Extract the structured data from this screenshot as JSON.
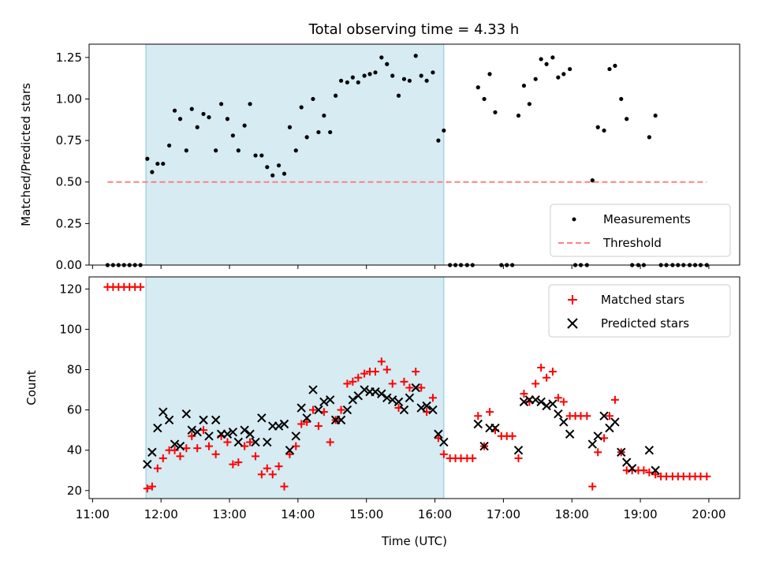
{
  "chart_data": [
    {
      "type": "scatter",
      "title": "Total observing time = 4.33 h",
      "ylabel": "Matched/Predicted stars",
      "xlabel": "",
      "xlim": [
        10.95,
        20.45
      ],
      "ylim": [
        0,
        1.33
      ],
      "yticks": [
        0.0,
        0.25,
        0.5,
        0.75,
        1.0,
        1.25
      ],
      "ytick_labels": [
        "0.00",
        "0.25",
        "0.50",
        "0.75",
        "1.00",
        "1.25"
      ],
      "xticks": [
        11,
        12,
        13,
        14,
        15,
        16,
        17,
        18,
        19,
        20
      ],
      "observing_window": [
        11.78,
        16.13
      ],
      "legend_position": "lower-right",
      "series": [
        {
          "name": "Measurements",
          "marker": "dot",
          "color": "#000000",
          "x": [
            11.22,
            11.3,
            11.38,
            11.46,
            11.54,
            11.62,
            11.7,
            11.8,
            11.87,
            11.95,
            12.03,
            12.12,
            12.2,
            12.28,
            12.37,
            12.45,
            12.53,
            12.62,
            12.7,
            12.8,
            12.88,
            12.97,
            13.05,
            13.13,
            13.22,
            13.3,
            13.38,
            13.47,
            13.55,
            13.63,
            13.72,
            13.8,
            13.88,
            13.97,
            14.05,
            14.13,
            14.22,
            14.3,
            14.38,
            14.47,
            14.55,
            14.63,
            14.72,
            14.8,
            14.88,
            14.97,
            15.05,
            15.13,
            15.22,
            15.3,
            15.38,
            15.47,
            15.55,
            15.63,
            15.72,
            15.8,
            15.88,
            15.97,
            16.05,
            16.13,
            16.22,
            16.3,
            16.38,
            16.47,
            16.55,
            16.63,
            16.72,
            16.8,
            16.88,
            16.97,
            17.05,
            17.13,
            17.22,
            17.3,
            17.38,
            17.47,
            17.55,
            17.63,
            17.72,
            17.8,
            17.88,
            17.97,
            18.05,
            18.13,
            18.22,
            18.3,
            18.38,
            18.47,
            18.55,
            18.63,
            18.72,
            18.8,
            18.88,
            18.97,
            19.05,
            19.13,
            19.22,
            19.3,
            19.38,
            19.47,
            19.55,
            19.63,
            19.72,
            19.8,
            19.88,
            19.97
          ],
          "y": [
            0,
            0,
            0,
            0,
            0,
            0,
            0,
            0.64,
            0.56,
            0.61,
            0.61,
            0.72,
            0.93,
            0.88,
            0.69,
            0.94,
            0.83,
            0.91,
            0.89,
            0.69,
            0.97,
            0.88,
            0.78,
            0.69,
            0.84,
            0.97,
            0.66,
            0.66,
            0.59,
            0.54,
            0.6,
            0.55,
            0.83,
            0.69,
            0.95,
            0.77,
            1.0,
            0.8,
            0.9,
            0.8,
            1.02,
            1.11,
            1.1,
            1.13,
            1.1,
            1.14,
            1.15,
            1.16,
            1.25,
            1.21,
            1.14,
            1.02,
            1.12,
            1.11,
            1.26,
            1.14,
            1.11,
            1.16,
            0.75,
            0.81,
            0,
            0,
            0,
            0,
            0,
            1.07,
            1.0,
            1.15,
            0.92,
            0,
            0,
            0,
            0.9,
            1.08,
            0.97,
            1.12,
            1.24,
            1.21,
            1.25,
            1.13,
            1.15,
            1.18,
            0,
            0,
            0,
            0.51,
            0.83,
            0.81,
            1.18,
            1.2,
            1.0,
            0.88,
            0,
            0,
            0,
            0.77,
            0.9,
            0,
            0,
            0,
            0,
            0,
            0,
            0,
            0,
            0
          ]
        },
        {
          "name": "Threshold",
          "marker": "dashed-line",
          "color": "#ff7f7f",
          "x": [
            11.22,
            19.97
          ],
          "y": [
            0.5,
            0.5
          ]
        }
      ]
    },
    {
      "type": "scatter",
      "title": "",
      "ylabel": "Count",
      "xlabel": "Time (UTC)",
      "xlim": [
        10.95,
        20.45
      ],
      "ylim": [
        16,
        126
      ],
      "yticks": [
        20,
        40,
        60,
        80,
        100,
        120
      ],
      "ytick_labels": [
        "20",
        "40",
        "60",
        "80",
        "100",
        "120"
      ],
      "xticks": [
        11,
        12,
        13,
        14,
        15,
        16,
        17,
        18,
        19,
        20
      ],
      "xtick_labels": [
        "11:00",
        "12:00",
        "13:00",
        "14:00",
        "15:00",
        "16:00",
        "17:00",
        "18:00",
        "19:00",
        "20:00"
      ],
      "observing_window": [
        11.78,
        16.13
      ],
      "legend_position": "upper-right",
      "series": [
        {
          "name": "Matched stars",
          "marker": "plus",
          "color": "#ff0000",
          "x": [
            11.22,
            11.3,
            11.38,
            11.46,
            11.54,
            11.62,
            11.7,
            11.8,
            11.87,
            11.95,
            12.03,
            12.12,
            12.2,
            12.28,
            12.37,
            12.45,
            12.53,
            12.62,
            12.7,
            12.8,
            12.88,
            12.97,
            13.05,
            13.13,
            13.22,
            13.3,
            13.38,
            13.47,
            13.55,
            13.63,
            13.72,
            13.8,
            13.88,
            13.97,
            14.05,
            14.13,
            14.22,
            14.3,
            14.38,
            14.47,
            14.55,
            14.63,
            14.72,
            14.8,
            14.88,
            14.97,
            15.05,
            15.13,
            15.22,
            15.3,
            15.38,
            15.47,
            15.55,
            15.63,
            15.72,
            15.8,
            15.88,
            15.97,
            16.05,
            16.13,
            16.22,
            16.3,
            16.38,
            16.47,
            16.55,
            16.63,
            16.72,
            16.8,
            16.88,
            16.97,
            17.05,
            17.13,
            17.22,
            17.3,
            17.38,
            17.47,
            17.55,
            17.63,
            17.72,
            17.8,
            17.88,
            17.97,
            18.05,
            18.13,
            18.22,
            18.3,
            18.38,
            18.47,
            18.55,
            18.63,
            18.72,
            18.8,
            18.88,
            18.97,
            19.05,
            19.13,
            19.22,
            19.3,
            19.38,
            19.47,
            19.55,
            19.63,
            19.72,
            19.8,
            19.88,
            19.97
          ],
          "y": [
            121,
            121,
            121,
            121,
            121,
            121,
            121,
            21,
            22,
            31,
            36,
            40,
            40,
            37,
            41,
            47,
            41,
            50,
            42,
            38,
            47,
            44,
            33,
            34,
            42,
            44,
            37,
            28,
            31,
            28,
            32,
            22,
            38,
            42,
            53,
            54,
            60,
            52,
            59,
            44,
            55,
            60,
            73,
            74,
            76,
            78,
            79,
            79,
            84,
            80,
            73,
            61,
            74,
            71,
            79,
            71,
            59,
            66,
            46,
            38,
            36,
            36,
            36,
            36,
            36,
            57,
            42,
            59,
            50,
            47,
            47,
            47,
            36,
            68,
            64,
            73,
            81,
            76,
            79,
            66,
            64,
            57,
            57,
            57,
            57,
            22,
            39,
            46,
            57,
            65,
            39,
            30,
            30,
            30,
            30,
            29,
            28,
            27,
            27,
            27,
            27,
            27,
            27,
            27,
            27,
            27
          ]
        },
        {
          "name": "Predicted stars",
          "marker": "cross",
          "color": "#000000",
          "x": [
            11.8,
            11.87,
            11.95,
            12.03,
            12.12,
            12.2,
            12.28,
            12.37,
            12.45,
            12.53,
            12.62,
            12.7,
            12.8,
            12.88,
            12.97,
            13.05,
            13.13,
            13.22,
            13.3,
            13.38,
            13.47,
            13.55,
            13.63,
            13.72,
            13.8,
            13.88,
            13.97,
            14.05,
            14.13,
            14.22,
            14.3,
            14.38,
            14.47,
            14.55,
            14.63,
            14.72,
            14.8,
            14.88,
            14.97,
            15.05,
            15.13,
            15.22,
            15.3,
            15.38,
            15.47,
            15.55,
            15.63,
            15.72,
            15.8,
            15.88,
            15.97,
            16.05,
            16.13,
            16.63,
            16.72,
            16.8,
            16.88,
            17.22,
            17.3,
            17.38,
            17.47,
            17.55,
            17.63,
            17.72,
            17.8,
            17.88,
            17.97,
            18.3,
            18.38,
            18.47,
            18.55,
            18.63,
            18.72,
            18.8,
            18.88,
            19.13,
            19.22
          ],
          "y": [
            33,
            39,
            51,
            59,
            55,
            43,
            42,
            58,
            50,
            49,
            55,
            47,
            55,
            48,
            48,
            49,
            44,
            50,
            48,
            44,
            56,
            44,
            52,
            52,
            53,
            40,
            47,
            61,
            56,
            70,
            60,
            64,
            65,
            55,
            55,
            60,
            65,
            67,
            70,
            69,
            69,
            68,
            66,
            65,
            64,
            60,
            66,
            71,
            61,
            62,
            60,
            48,
            44,
            53,
            42,
            51,
            51,
            40,
            64,
            65,
            65,
            64,
            62,
            63,
            58,
            54,
            48,
            43,
            47,
            57,
            51,
            54,
            39,
            34,
            31,
            40,
            30
          ]
        }
      ]
    }
  ]
}
